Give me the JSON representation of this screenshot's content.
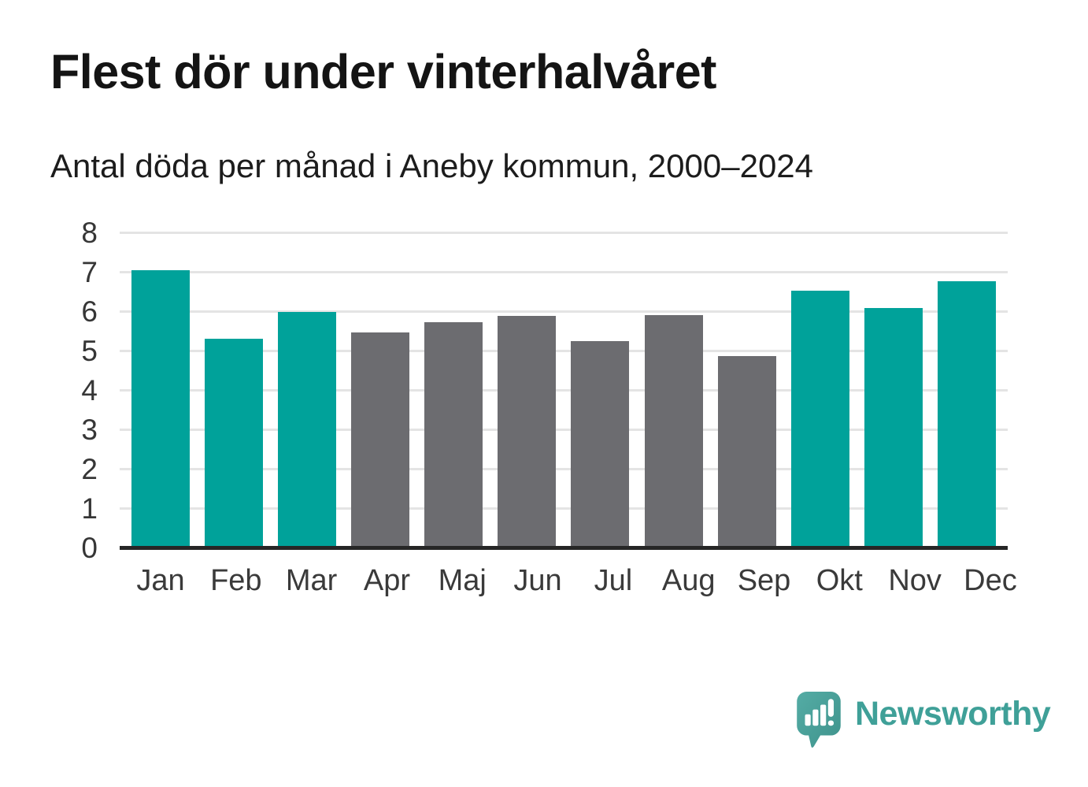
{
  "header": {
    "title": "Flest dör under vinterhalvåret",
    "subtitle": "Antal döda per månad i Aneby kommun, 2000–2024"
  },
  "chart_data": {
    "type": "bar",
    "title": "Flest dör under vinterhalvåret",
    "subtitle": "Antal döda per månad i Aneby kommun, 2000–2024",
    "categories": [
      "Jan",
      "Feb",
      "Mar",
      "Apr",
      "Maj",
      "Jun",
      "Jul",
      "Aug",
      "Sep",
      "Okt",
      "Nov",
      "Dec"
    ],
    "values": [
      7.06,
      5.33,
      6.01,
      5.49,
      5.74,
      5.9,
      5.26,
      5.93,
      4.89,
      6.54,
      6.1,
      6.78
    ],
    "groups": [
      "winter",
      "winter",
      "winter",
      "summer",
      "summer",
      "summer",
      "summer",
      "summer",
      "summer",
      "winter",
      "winter",
      "winter"
    ],
    "palette": {
      "winter": "#00a29a",
      "summer": "#6c6c70"
    },
    "xlabel": "",
    "ylabel": "",
    "ylim": [
      0,
      8
    ],
    "yticks": [
      0,
      1,
      2,
      3,
      4,
      5,
      6,
      7,
      8
    ],
    "grid": "horizontal",
    "legend": "none",
    "axis_color": "#262626",
    "gridline_color": "#e4e4e4",
    "tick_label_color": "#3a3a3a"
  },
  "branding": {
    "logo_text": "Newsworthy",
    "logo_icon": "bar-chart-speech-bubble-icon",
    "logo_color": "#3fa098",
    "logo_bubble_color": "#4aa29b"
  }
}
